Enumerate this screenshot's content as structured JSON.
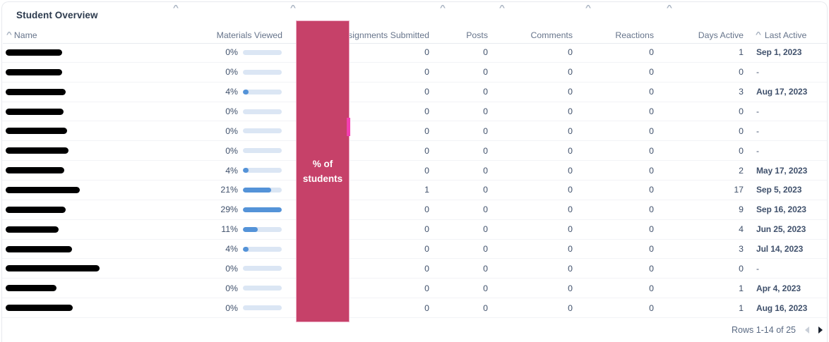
{
  "title": "Student Overview",
  "columns": {
    "name": "Name",
    "materials": "Materials Viewed",
    "assignments": "Assignments Submitted",
    "posts": "Posts",
    "comments": "Comments",
    "reactions": "Reactions",
    "days_active": "Days Active",
    "last_active": "Last Active"
  },
  "banner": {
    "line1": "% of",
    "line2": "students",
    "color": "#c64169",
    "artifact_color": "#f33fb2"
  },
  "bar_colors": {
    "track": "#dbe6f4",
    "fill": "#5493d8"
  },
  "table": {
    "max_pct": 29,
    "rows": [
      {
        "name_redaction_width": 80,
        "materials_pct": 0,
        "materials_label": "0%",
        "assignments": "0",
        "posts": "0",
        "comments": "0",
        "reactions": "0",
        "days_active": "1",
        "last_active": "Sep 1, 2023"
      },
      {
        "name_redaction_width": 80,
        "materials_pct": 0,
        "materials_label": "0%",
        "assignments": "0",
        "posts": "0",
        "comments": "0",
        "reactions": "0",
        "days_active": "0",
        "last_active": "-"
      },
      {
        "name_redaction_width": 85,
        "materials_pct": 4,
        "materials_label": "4%",
        "assignments": "0",
        "posts": "0",
        "comments": "0",
        "reactions": "0",
        "days_active": "3",
        "last_active": "Aug 17, 2023"
      },
      {
        "name_redaction_width": 82,
        "materials_pct": 0,
        "materials_label": "0%",
        "assignments": "0",
        "posts": "0",
        "comments": "0",
        "reactions": "0",
        "days_active": "0",
        "last_active": "-"
      },
      {
        "name_redaction_width": 87,
        "materials_pct": 0,
        "materials_label": "0%",
        "assignments": "0",
        "posts": "0",
        "comments": "0",
        "reactions": "0",
        "days_active": "0",
        "last_active": "-"
      },
      {
        "name_redaction_width": 89,
        "materials_pct": 0,
        "materials_label": "0%",
        "assignments": "0",
        "posts": "0",
        "comments": "0",
        "reactions": "0",
        "days_active": "0",
        "last_active": "-"
      },
      {
        "name_redaction_width": 83,
        "materials_pct": 4,
        "materials_label": "4%",
        "assignments": "0",
        "posts": "0",
        "comments": "0",
        "reactions": "0",
        "days_active": "2",
        "last_active": "May 17, 2023"
      },
      {
        "name_redaction_width": 105,
        "materials_pct": 21,
        "materials_label": "21%",
        "assignments": "1",
        "posts": "0",
        "comments": "0",
        "reactions": "0",
        "days_active": "17",
        "last_active": "Sep 5, 2023"
      },
      {
        "name_redaction_width": 85,
        "materials_pct": 29,
        "materials_label": "29%",
        "assignments": "0",
        "posts": "0",
        "comments": "0",
        "reactions": "0",
        "days_active": "9",
        "last_active": "Sep 16, 2023"
      },
      {
        "name_redaction_width": 75,
        "materials_pct": 11,
        "materials_label": "11%",
        "assignments": "0",
        "posts": "0",
        "comments": "0",
        "reactions": "0",
        "days_active": "4",
        "last_active": "Jun 25, 2023"
      },
      {
        "name_redaction_width": 94,
        "materials_pct": 4,
        "materials_label": "4%",
        "assignments": "0",
        "posts": "0",
        "comments": "0",
        "reactions": "0",
        "days_active": "3",
        "last_active": "Jul 14, 2023"
      },
      {
        "name_redaction_width": 133,
        "materials_pct": 0,
        "materials_label": "0%",
        "assignments": "0",
        "posts": "0",
        "comments": "0",
        "reactions": "0",
        "days_active": "0",
        "last_active": "-"
      },
      {
        "name_redaction_width": 72,
        "materials_pct": 0,
        "materials_label": "0%",
        "assignments": "0",
        "posts": "0",
        "comments": "0",
        "reactions": "0",
        "days_active": "1",
        "last_active": "Apr 4, 2023"
      },
      {
        "name_redaction_width": 95,
        "materials_pct": 0,
        "materials_label": "0%",
        "assignments": "0",
        "posts": "0",
        "comments": "0",
        "reactions": "0",
        "days_active": "1",
        "last_active": "Aug 16, 2023"
      }
    ]
  },
  "footer": {
    "rows_label": "Rows 1-14 of 25"
  }
}
